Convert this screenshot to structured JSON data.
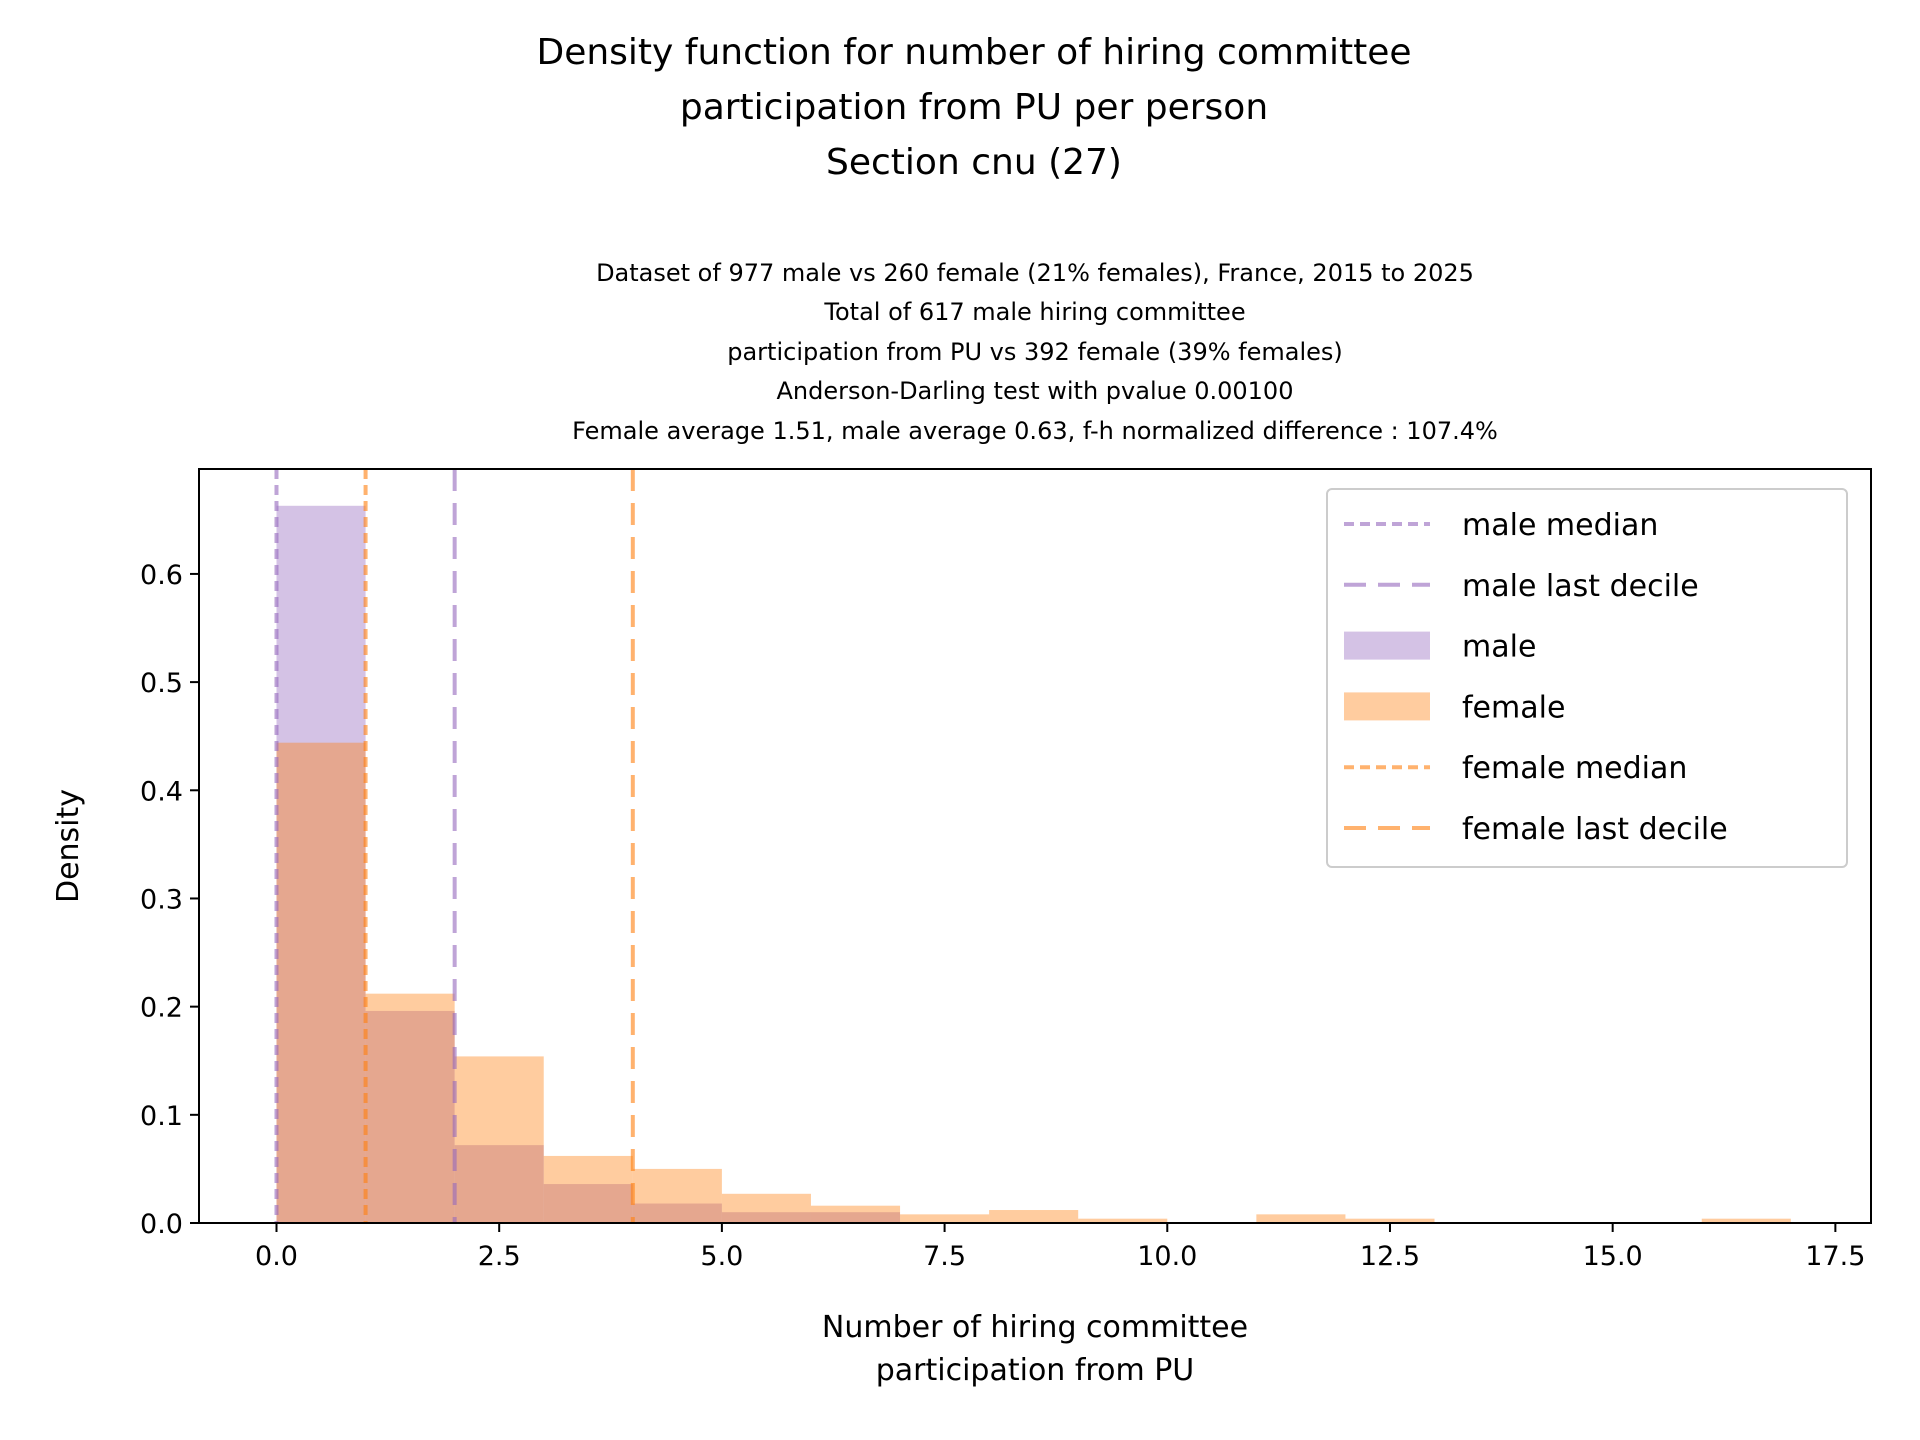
{
  "chart_data": {
    "type": "bar",
    "title": [
      "Density function for number of hiring committee",
      "participation from PU per person",
      "Section cnu (27)"
    ],
    "subtitle": [
      "Dataset of 977 male vs 260 female (21% females), France, 2015 to 2025",
      "Total of 617 male hiring committee",
      "participation from PU vs 392 female (39% females)",
      "Anderson-Darling test with pvalue 0.00100",
      "Female average 1.51, male average 0.63, f-h normalized difference : 107.4%"
    ],
    "xlabel": [
      "Number of hiring committee",
      "participation from PU"
    ],
    "ylabel": "Density",
    "xlim": [
      -0.87,
      17.9
    ],
    "ylim": [
      0,
      0.697
    ],
    "xticks": [
      0,
      2.5,
      5,
      7.5,
      10,
      12.5,
      15,
      17.5
    ],
    "xtick_labels": [
      "0.0",
      "2.5",
      "5.0",
      "7.5",
      "10.0",
      "12.5",
      "15.0",
      "17.5"
    ],
    "yticks": [
      0,
      0.1,
      0.2,
      0.3,
      0.4,
      0.5,
      0.6
    ],
    "ytick_labels": [
      "0.0",
      "0.1",
      "0.2",
      "0.3",
      "0.4",
      "0.5",
      "0.6"
    ],
    "bin_edges": [
      0,
      1,
      2,
      3,
      4,
      5,
      6,
      7,
      8,
      9,
      10,
      11,
      12,
      13,
      14,
      15,
      16,
      17
    ],
    "series": [
      {
        "name": "male",
        "color": "#9467bd",
        "values": [
          0.663,
          0.196,
          0.072,
          0.036,
          0.018,
          0.01,
          0.01,
          0,
          0,
          0,
          0,
          0,
          0,
          0,
          0,
          0,
          0
        ]
      },
      {
        "name": "female",
        "color": "#ff7f0e",
        "values": [
          0.444,
          0.212,
          0.154,
          0.062,
          0.05,
          0.027,
          0.016,
          0.008,
          0.012,
          0.004,
          0,
          0.008,
          0.004,
          0,
          0,
          0,
          0.004
        ]
      }
    ],
    "vlines": [
      {
        "name": "male median",
        "x": 0,
        "color": "#9467bd",
        "dash": "short"
      },
      {
        "name": "male last decile",
        "x": 2,
        "color": "#9467bd",
        "dash": "long"
      },
      {
        "name": "female median",
        "x": 1,
        "color": "#ff7f0e",
        "dash": "short"
      },
      {
        "name": "female last decile",
        "x": 4,
        "color": "#ff7f0e",
        "dash": "long"
      }
    ],
    "legend": {
      "placement": "top-right",
      "entries": [
        {
          "label": "male median",
          "kind": "line",
          "color": "#9467bd",
          "dash": "short"
        },
        {
          "label": "male last decile",
          "kind": "line",
          "color": "#9467bd",
          "dash": "long"
        },
        {
          "label": "male",
          "kind": "patch",
          "color": "#9467bd"
        },
        {
          "label": "female",
          "kind": "patch",
          "color": "#ff7f0e"
        },
        {
          "label": "female median",
          "kind": "line",
          "color": "#ff7f0e",
          "dash": "short"
        },
        {
          "label": "female last decile",
          "kind": "line",
          "color": "#ff7f0e",
          "dash": "long"
        }
      ]
    }
  }
}
